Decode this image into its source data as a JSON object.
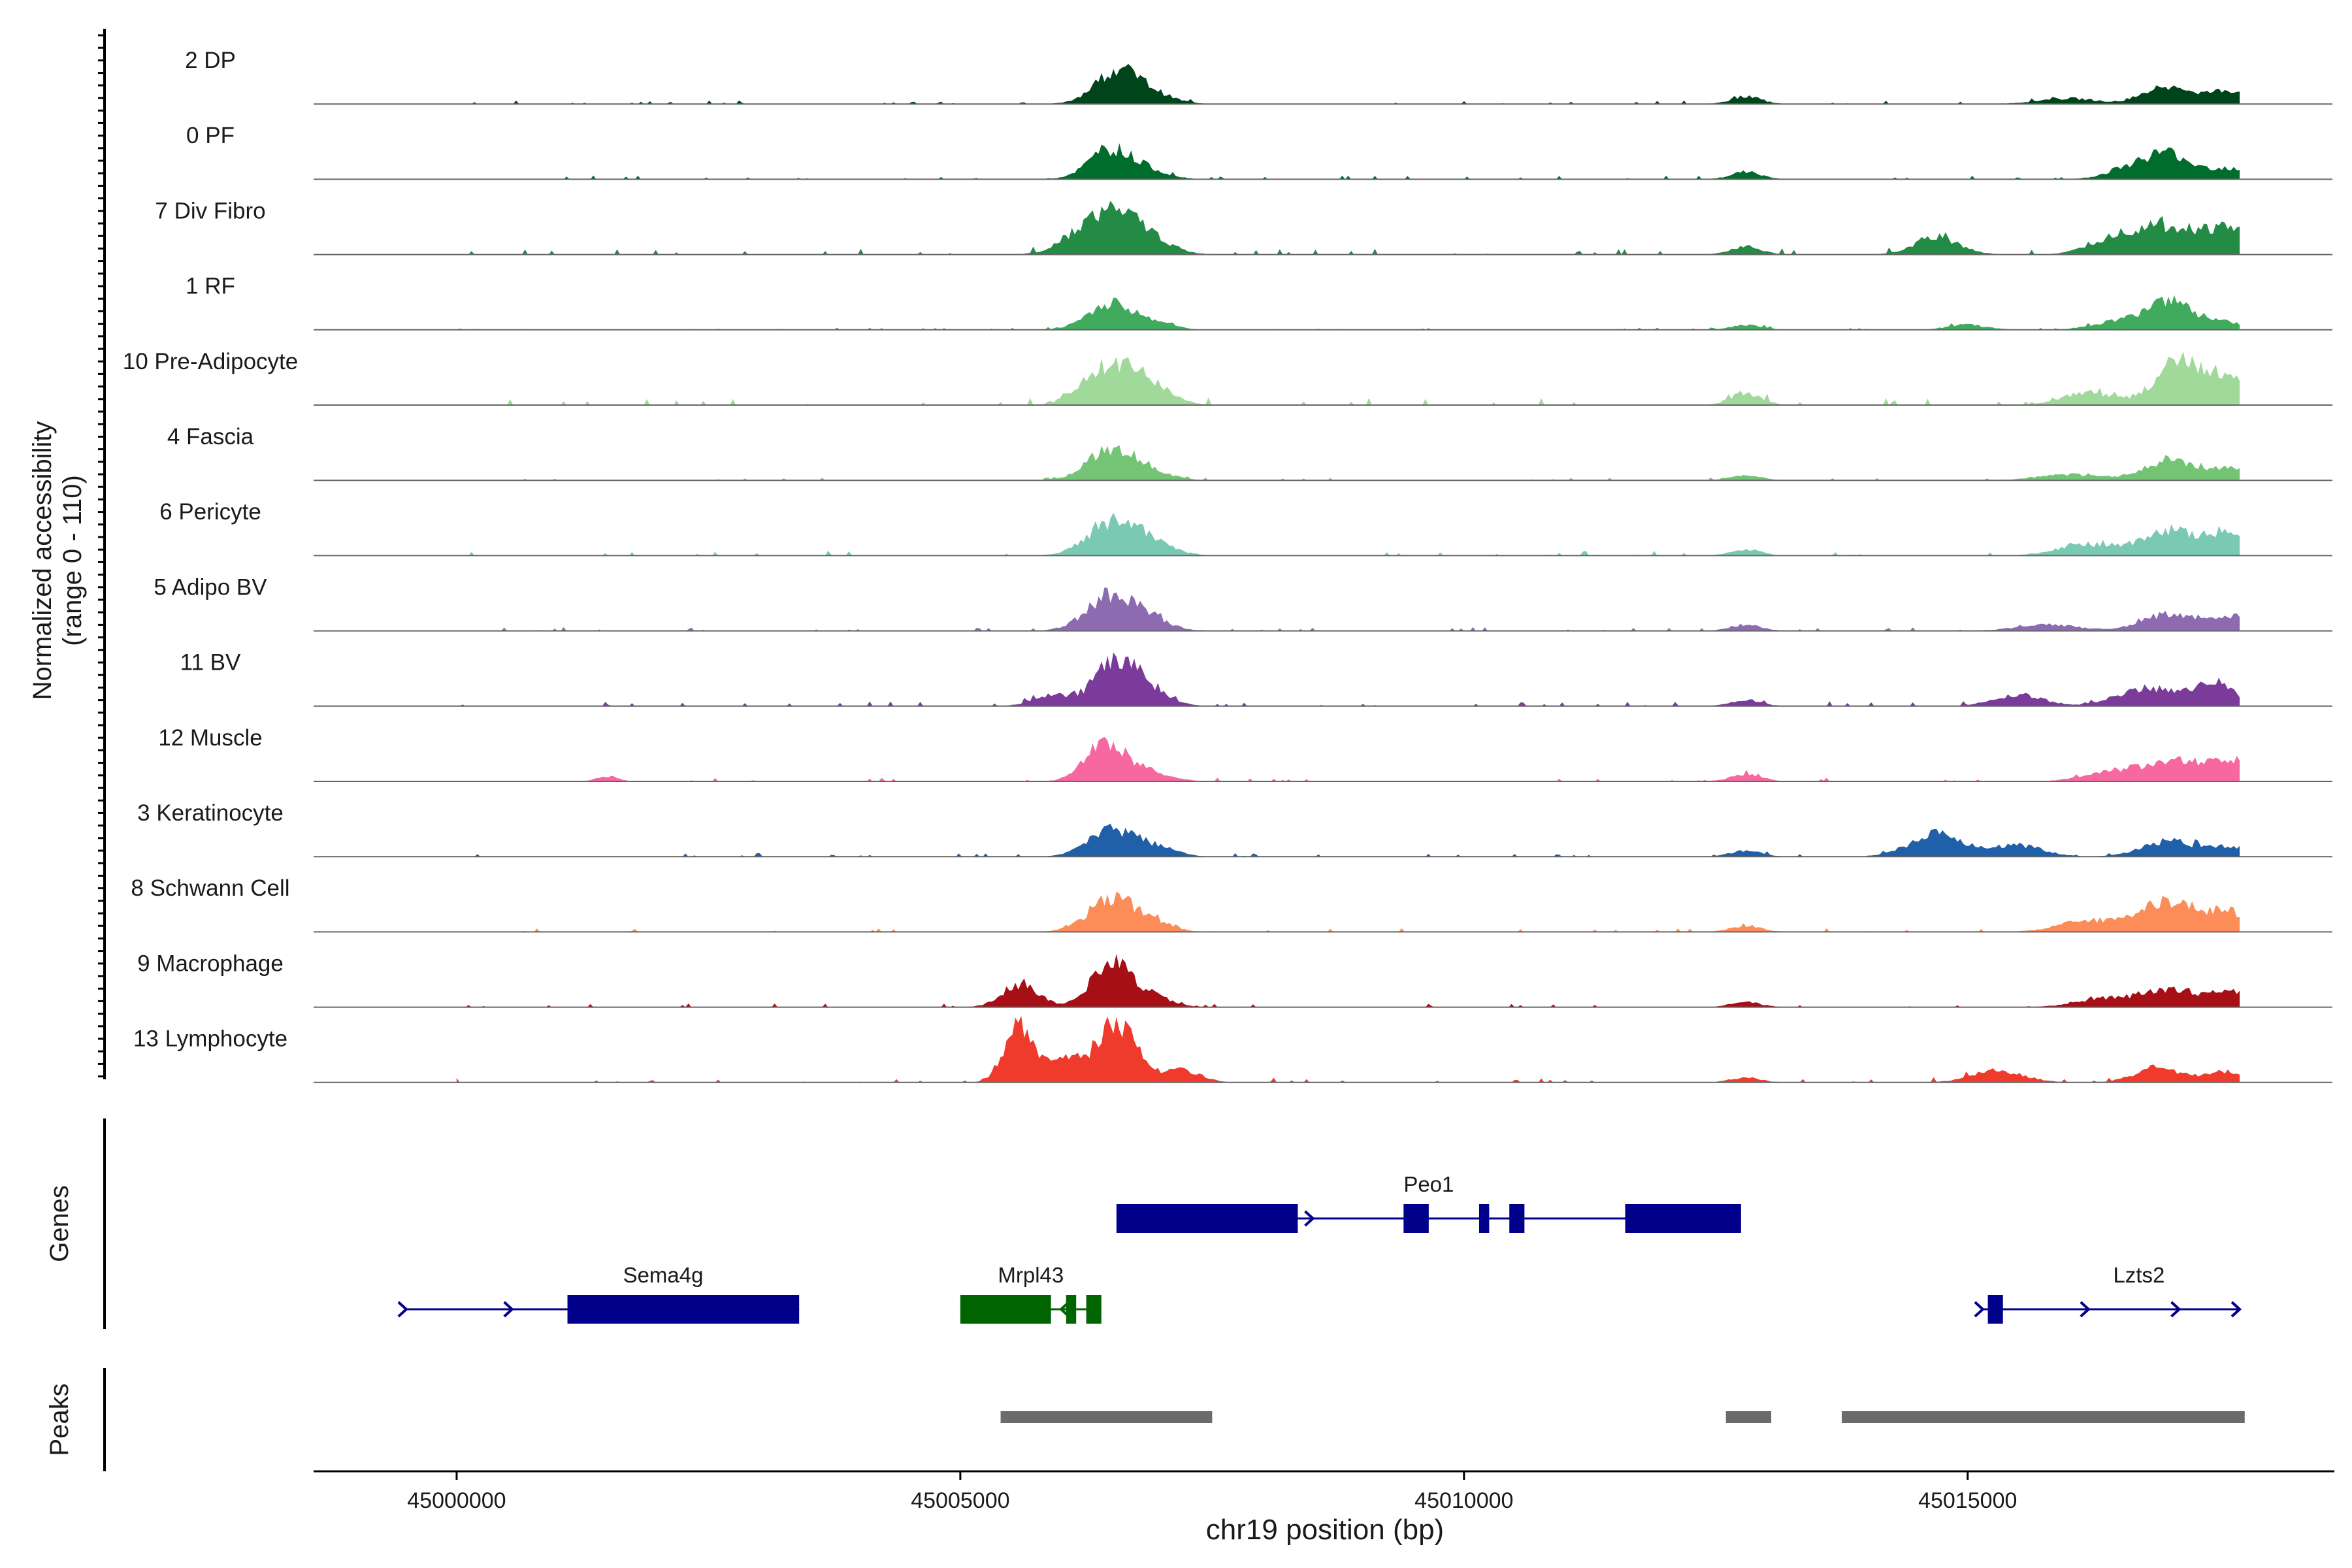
{
  "chart_data": {
    "type": "area",
    "chromosome": "chr19",
    "x_range": [
      44998580,
      45018640
    ],
    "y_range": [
      0,
      110
    ],
    "ylabel_line1": "Normalized accessibility",
    "ylabel_line2": "(range 0 - 110)",
    "xlabel": "chr19 position (bp)",
    "xticks": [
      45000000,
      45005000,
      45010000,
      45015000
    ],
    "xtick_labels": [
      "45000000",
      "45005000",
      "45010000",
      "45015000"
    ],
    "panel_labels": {
      "genes": "Genes",
      "peaks": "Peaks"
    },
    "track_start": 45000000,
    "track_end": 45017700,
    "tracks": [
      {
        "name": "2 DP",
        "color": "#00441b",
        "peaks": [
          [
            45006550,
            52,
            220
          ],
          [
            45006900,
            14,
            220
          ],
          [
            45012800,
            12,
            150
          ],
          [
            45016000,
            9,
            300
          ],
          [
            45017000,
            30,
            220
          ],
          [
            45017600,
            22,
            200
          ]
        ],
        "base": 3
      },
      {
        "name": "0 PF",
        "color": "#006d2c",
        "peaks": [
          [
            45006500,
            48,
            220
          ],
          [
            45006900,
            10,
            200
          ],
          [
            45012800,
            12,
            150
          ],
          [
            45016600,
            17,
            220
          ],
          [
            45017000,
            40,
            220
          ],
          [
            45017600,
            18,
            200
          ]
        ],
        "base": 3
      },
      {
        "name": "7 Div Fibro",
        "color": "#238b45",
        "peaks": [
          [
            45006400,
            62,
            280
          ],
          [
            45006800,
            28,
            250
          ],
          [
            45012800,
            14,
            150
          ],
          [
            45014700,
            28,
            220
          ],
          [
            45016500,
            30,
            260
          ],
          [
            45017000,
            40,
            260
          ],
          [
            45017600,
            42,
            250
          ]
        ],
        "base": 5
      },
      {
        "name": "1 RF",
        "color": "#41ab5d",
        "peaks": [
          [
            45006500,
            42,
            230
          ],
          [
            45006950,
            10,
            180
          ],
          [
            45012800,
            8,
            150
          ],
          [
            45015000,
            8,
            200
          ],
          [
            45016500,
            14,
            250
          ],
          [
            45017000,
            45,
            210
          ],
          [
            45017500,
            14,
            200
          ]
        ],
        "base": 2
      },
      {
        "name": "10 Pre-Adipocyte",
        "color": "#a1d99b",
        "peaks": [
          [
            45006300,
            30,
            200
          ],
          [
            45006600,
            55,
            220
          ],
          [
            45006950,
            20,
            200
          ],
          [
            45012800,
            20,
            150
          ],
          [
            45016200,
            20,
            250
          ],
          [
            45017100,
            70,
            240
          ],
          [
            45017600,
            42,
            180
          ]
        ],
        "base": 6
      },
      {
        "name": "4 Fascia",
        "color": "#74c476",
        "peaks": [
          [
            45006500,
            50,
            230
          ],
          [
            45006900,
            12,
            200
          ],
          [
            45012800,
            8,
            150
          ],
          [
            45016000,
            10,
            300
          ],
          [
            45017000,
            33,
            250
          ],
          [
            45017600,
            20,
            200
          ]
        ],
        "base": 2
      },
      {
        "name": "6 Pericyte",
        "color": "#7ac9b3",
        "peaks": [
          [
            45006500,
            52,
            240
          ],
          [
            45006900,
            20,
            220
          ],
          [
            45012800,
            10,
            150
          ],
          [
            45016200,
            18,
            300
          ],
          [
            45017000,
            40,
            260
          ],
          [
            45017600,
            38,
            200
          ]
        ],
        "base": 4
      },
      {
        "name": "5 Adipo BV",
        "color": "#8c6bb1",
        "peaks": [
          [
            45006500,
            58,
            240
          ],
          [
            45006900,
            14,
            200
          ],
          [
            45012800,
            10,
            150
          ],
          [
            45015800,
            10,
            300
          ],
          [
            45017000,
            28,
            260
          ],
          [
            45017600,
            22,
            200
          ]
        ],
        "base": 3
      },
      {
        "name": "11 BV",
        "color": "#7a3b9a",
        "peaks": [
          [
            45005900,
            18,
            180
          ],
          [
            45006550,
            70,
            220
          ],
          [
            45006900,
            18,
            200
          ],
          [
            45012800,
            10,
            150
          ],
          [
            45015500,
            18,
            250
          ],
          [
            45016800,
            30,
            300
          ],
          [
            45017450,
            38,
            180
          ]
        ],
        "base": 4
      },
      {
        "name": "12 Muscle",
        "color": "#f768a1",
        "peaks": [
          [
            45001500,
            8,
            100
          ],
          [
            45006450,
            62,
            200
          ],
          [
            45006900,
            14,
            200
          ],
          [
            45012800,
            12,
            150
          ],
          [
            45016500,
            18,
            300
          ],
          [
            45017100,
            30,
            260
          ],
          [
            45017600,
            34,
            200
          ]
        ],
        "base": 3
      },
      {
        "name": "3 Keratinocyte",
        "color": "#2060a8",
        "peaks": [
          [
            45006500,
            42,
            230
          ],
          [
            45006950,
            14,
            200
          ],
          [
            45012800,
            10,
            150
          ],
          [
            45014700,
            38,
            260
          ],
          [
            45015500,
            18,
            250
          ],
          [
            45017000,
            25,
            260
          ],
          [
            45017600,
            14,
            200
          ]
        ],
        "base": 3
      },
      {
        "name": "8 Schwann Cell",
        "color": "#fc8d59",
        "peaks": [
          [
            45006500,
            52,
            230
          ],
          [
            45006900,
            14,
            200
          ],
          [
            45012800,
            10,
            150
          ],
          [
            45016200,
            18,
            300
          ],
          [
            45017000,
            50,
            270
          ],
          [
            45017600,
            30,
            200
          ]
        ],
        "base": 3
      },
      {
        "name": "9 Macrophage",
        "color": "#a50f15",
        "peaks": [
          [
            45005600,
            38,
            180
          ],
          [
            45006500,
            70,
            200
          ],
          [
            45006900,
            15,
            200
          ],
          [
            45012800,
            8,
            150
          ],
          [
            45016400,
            15,
            300
          ],
          [
            45017000,
            28,
            230
          ],
          [
            45017600,
            26,
            200
          ]
        ],
        "base": 3
      },
      {
        "name": "13 Lymphocyte",
        "color": "#ef3b2c",
        "peaks": [
          [
            45005600,
            90,
            150
          ],
          [
            45006050,
            40,
            150
          ],
          [
            45006550,
            95,
            200
          ],
          [
            45007200,
            20,
            180
          ],
          [
            45012800,
            8,
            150
          ],
          [
            45015300,
            20,
            250
          ],
          [
            45016900,
            24,
            230
          ],
          [
            45017600,
            18,
            200
          ]
        ],
        "base": 4
      }
    ],
    "genes": [
      {
        "name": "Peo1",
        "row": 0,
        "strand": "+",
        "color": "#00008b",
        "start": 45006550,
        "end": 45012750,
        "exons": [
          [
            45006550,
            45008350
          ],
          [
            45009400,
            45009650
          ],
          [
            45010150,
            45010250
          ],
          [
            45010450,
            45010600
          ],
          [
            45011600,
            45012750
          ]
        ],
        "arrows": [
          45008500,
          45009550
        ]
      },
      {
        "name": "Sema4g",
        "row": 1,
        "strand": "+",
        "color": "#00008b",
        "start": 44999500,
        "end": 45003400,
        "exons": [
          [
            45001100,
            45003400
          ]
        ],
        "arrows": [
          44999500,
          45000550
        ]
      },
      {
        "name": "Mrpl43",
        "row": 1,
        "strand": "-",
        "color": "#006400",
        "start": 45005000,
        "end": 45006400,
        "exons": [
          [
            45005000,
            45005900
          ],
          [
            45006050,
            45006150
          ],
          [
            45006250,
            45006400
          ]
        ],
        "arrows": [
          45006000
        ]
      },
      {
        "name": "Lzts2",
        "row": 1,
        "strand": "+",
        "color": "#00008b",
        "start": 45015150,
        "end": 45017700,
        "exons": [
          [
            45015200,
            45015350
          ]
        ],
        "arrows": [
          45015150,
          45016200,
          45017100,
          45017700
        ]
      }
    ],
    "peaks": [
      [
        45005400,
        45007500
      ],
      [
        45012600,
        45013050
      ],
      [
        45013750,
        45017750
      ]
    ]
  }
}
